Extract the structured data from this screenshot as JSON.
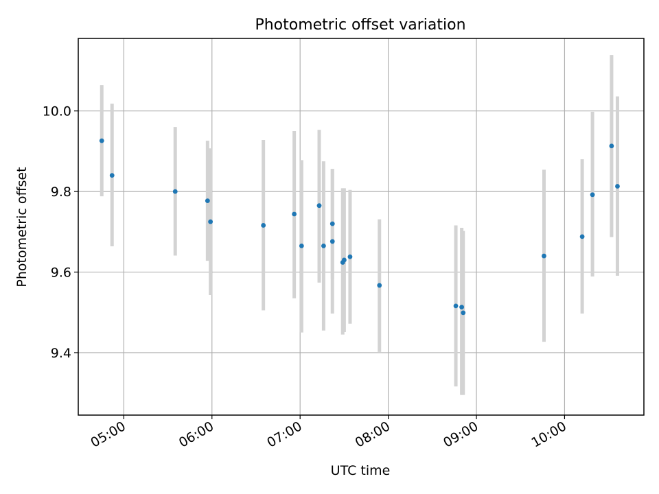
{
  "chart_data": {
    "type": "scatter",
    "title": "Photometric offset variation",
    "xlabel": "UTC time",
    "ylabel": "Photometric offset",
    "x_ticks": [
      "05:00",
      "06:00",
      "07:00",
      "08:00",
      "09:00",
      "10:00"
    ],
    "y_ticks": [
      "9.4",
      "9.6",
      "9.8",
      "10.0"
    ],
    "xlim": [
      "04:29",
      "10:54"
    ],
    "ylim": [
      9.245,
      10.18
    ],
    "grid": true,
    "colors": {
      "marker": "#1f77b4",
      "errorbar": "#d3d3d3",
      "grid": "#b0b0b0"
    },
    "points": [
      {
        "x": "04:45",
        "y": 9.926,
        "ylow": 9.788,
        "yhigh": 10.064
      },
      {
        "x": "04:52",
        "y": 9.84,
        "ylow": 9.664,
        "yhigh": 10.018
      },
      {
        "x": "05:35",
        "y": 9.8,
        "ylow": 9.641,
        "yhigh": 9.96
      },
      {
        "x": "05:57",
        "y": 9.777,
        "ylow": 9.628,
        "yhigh": 9.926
      },
      {
        "x": "05:59",
        "y": 9.725,
        "ylow": 9.543,
        "yhigh": 9.907
      },
      {
        "x": "06:35",
        "y": 9.716,
        "ylow": 9.505,
        "yhigh": 9.928
      },
      {
        "x": "06:56",
        "y": 9.744,
        "ylow": 9.535,
        "yhigh": 9.95
      },
      {
        "x": "07:01",
        "y": 9.665,
        "ylow": 9.45,
        "yhigh": 9.878
      },
      {
        "x": "07:13",
        "y": 9.765,
        "ylow": 9.574,
        "yhigh": 9.953
      },
      {
        "x": "07:16",
        "y": 9.665,
        "ylow": 9.455,
        "yhigh": 9.875
      },
      {
        "x": "07:22",
        "y": 9.72,
        "ylow": 9.583,
        "yhigh": 9.856
      },
      {
        "x": "07:22",
        "y": 9.676,
        "ylow": 9.497,
        "yhigh": 9.856
      },
      {
        "x": "07:29",
        "y": 9.624,
        "ylow": 9.445,
        "yhigh": 9.808
      },
      {
        "x": "07:30",
        "y": 9.63,
        "ylow": 9.451,
        "yhigh": 9.808
      },
      {
        "x": "07:34",
        "y": 9.638,
        "ylow": 9.472,
        "yhigh": 9.804
      },
      {
        "x": "07:54",
        "y": 9.567,
        "ylow": 9.402,
        "yhigh": 9.731
      },
      {
        "x": "08:46",
        "y": 9.516,
        "ylow": 9.316,
        "yhigh": 9.716
      },
      {
        "x": "08:50",
        "y": 9.513,
        "ylow": 9.295,
        "yhigh": 9.71
      },
      {
        "x": "08:51",
        "y": 9.499,
        "ylow": 9.295,
        "yhigh": 9.702
      },
      {
        "x": "09:46",
        "y": 9.64,
        "ylow": 9.427,
        "yhigh": 9.854
      },
      {
        "x": "10:12",
        "y": 9.688,
        "ylow": 9.497,
        "yhigh": 9.88
      },
      {
        "x": "10:19",
        "y": 9.792,
        "ylow": 9.589,
        "yhigh": 9.998
      },
      {
        "x": "10:32",
        "y": 9.913,
        "ylow": 9.687,
        "yhigh": 10.139
      },
      {
        "x": "10:36",
        "y": 9.813,
        "ylow": 9.591,
        "yhigh": 10.036
      }
    ]
  }
}
